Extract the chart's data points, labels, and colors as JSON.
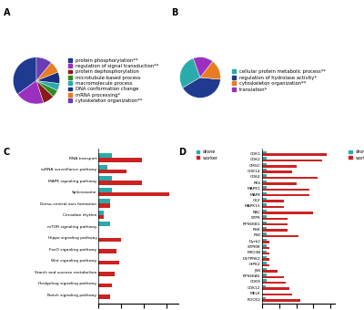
{
  "A_labels": [
    "protein phosphorylation**",
    "regulation of signal transduction**",
    "protein dephosphorylation",
    "microtubule-based process",
    "macromolecule process",
    "DNA conformation change",
    "mRNA processing*",
    "cytoskeleton organization**"
  ],
  "A_sizes": [
    35,
    20,
    8,
    5,
    5,
    8,
    8,
    11
  ],
  "A_colors": [
    "#1f3a8f",
    "#9b30c0",
    "#8b1a1a",
    "#2e8b20",
    "#2aabab",
    "#1a3080",
    "#e87c1e",
    "#6a3cb5"
  ],
  "B_labels": [
    "cellular protein metabolic process**",
    "regulation of hydrolase activity*",
    "cytoskeleton organization**",
    "translation*"
  ],
  "B_sizes": [
    28,
    40,
    16,
    16
  ],
  "B_colors": [
    "#2aabab",
    "#1f3a8f",
    "#e87c1e",
    "#9b30c0"
  ],
  "C_categories": [
    "Notch signaling pathway",
    "Hedgehog signaling pathway",
    "Starch and sucrose metabolism",
    "Wnt signaling pathway",
    "FoxO signaling pathway",
    "Hippo signaling pathway",
    "mTOR signaling pathway",
    "Circadian rhythm",
    "Dorso-ventral axis formation",
    "Spliceosome",
    "MAPK signaling pathway",
    "mRNA surveillance pathway",
    "RNA transport"
  ],
  "C_drone": [
    0,
    0,
    0,
    0,
    0,
    0,
    10,
    5,
    10,
    12,
    12,
    8,
    12
  ],
  "C_worker": [
    10,
    12,
    14,
    18,
    16,
    20,
    0,
    5,
    10,
    62,
    38,
    25,
    38
  ],
  "D_categories": [
    "ROCK2",
    "MELK",
    "CDK12",
    "CDK9",
    "RPS6KA5",
    "JNK",
    "HIPK2",
    "DSTPRK2",
    "MYO3B",
    "STPKM",
    "Dyrk2",
    "PSK",
    "RSK",
    "RPS6KB1",
    "STPK",
    "RAC",
    "MAPK15",
    "CK2",
    "MAPK",
    "MAPK1",
    "PKS",
    "CDK4",
    "CDK14",
    "CMGC",
    "CDK2",
    "CDK1"
  ],
  "D_drone": [
    4,
    0,
    4,
    5,
    5,
    5,
    5,
    5,
    5,
    5,
    5,
    5,
    5,
    5,
    5,
    5,
    5,
    5,
    5,
    5,
    5,
    5,
    5,
    5,
    5,
    5
  ],
  "D_worker": [
    45,
    35,
    32,
    28,
    25,
    18,
    8,
    8,
    8,
    8,
    8,
    42,
    30,
    30,
    30,
    60,
    25,
    25,
    55,
    55,
    40,
    65,
    35,
    40,
    70,
    75
  ],
  "drone_color": "#2aabab",
  "worker_color": "#cc2222"
}
